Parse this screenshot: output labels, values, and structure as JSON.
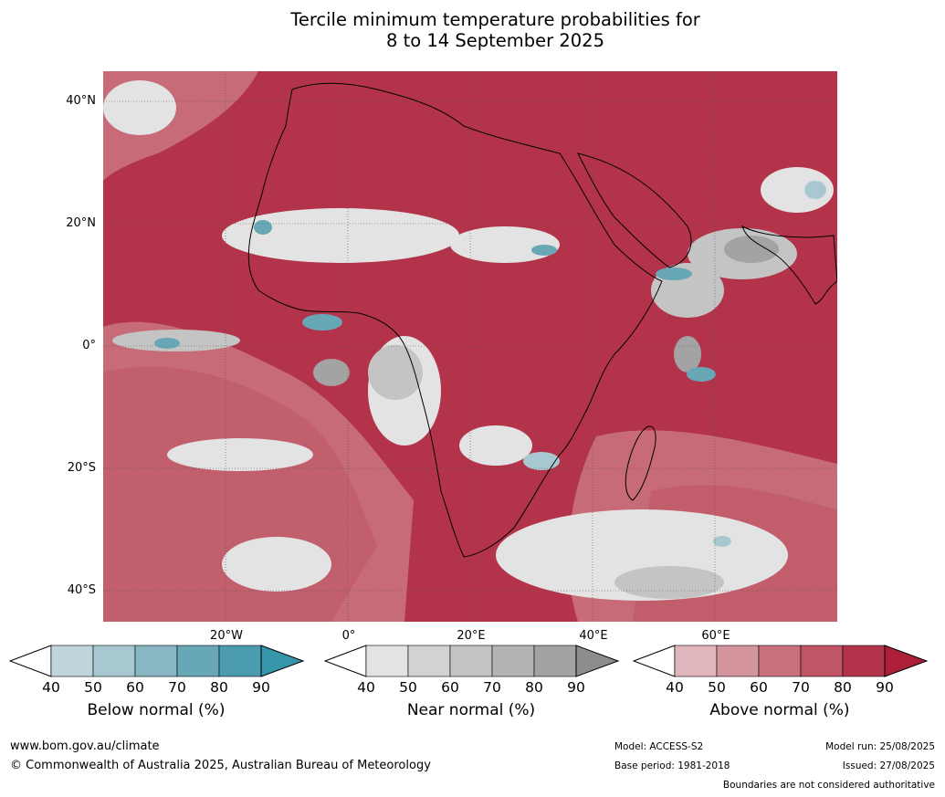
{
  "title_line1": "Tercile minimum temperature probabilities for",
  "title_line2": "8 to 14 September 2025",
  "lat_labels": [
    "40°N",
    "20°N",
    "0°",
    "20°S",
    "40°S"
  ],
  "lon_labels": [
    "20°W",
    "0°",
    "20°E",
    "40°E",
    "60°E"
  ],
  "colorbars": [
    {
      "label": "Below normal (%)",
      "ticks": [
        "40",
        "50",
        "60",
        "70",
        "80",
        "90"
      ],
      "colors": [
        "#bfd5dc",
        "#a7c8d0",
        "#88b6c2",
        "#68a8b6",
        "#4a9cae",
        "#3795aa"
      ]
    },
    {
      "label": "Near normal (%)",
      "ticks": [
        "40",
        "50",
        "60",
        "70",
        "80",
        "90"
      ],
      "colors": [
        "#e3e3e3",
        "#d2d2d2",
        "#c4c4c4",
        "#b4b4b4",
        "#a3a3a3",
        "#8c8c8c"
      ]
    },
    {
      "label": "Above normal (%)",
      "ticks": [
        "40",
        "50",
        "60",
        "70",
        "80",
        "90"
      ],
      "colors": [
        "#e1b6bd",
        "#d4949d",
        "#c8717c",
        "#bf5565",
        "#b3344a",
        "#ad1e38"
      ]
    }
  ],
  "footer": {
    "website": "www.bom.gov.au/climate",
    "copyright": "© Commonwealth of Australia 2025, Australian Bureau of Meteorology",
    "model": "Model: ACCESS-S2",
    "base_period": "Base period: 1981-2018",
    "model_run": "Model run: 25/08/2025",
    "issued": "Issued: 27/08/2025",
    "disclaimer": "Boundaries are not considered authoritative"
  }
}
